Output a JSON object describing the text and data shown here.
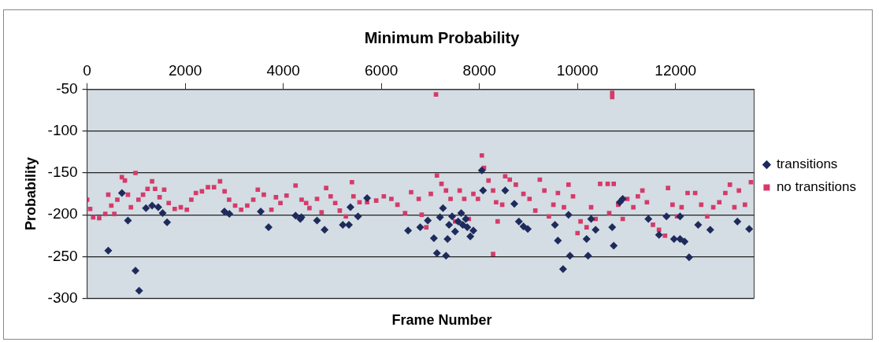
{
  "chart_data": {
    "type": "scatter",
    "title": "Minimum Probability",
    "xlabel": "Frame Number",
    "ylabel": "Probability",
    "xlim": [
      0,
      13600
    ],
    "xticks": [
      0,
      2000,
      4000,
      6000,
      8000,
      10000,
      12000
    ],
    "ylim": [
      -300,
      -50
    ],
    "yticks": [
      -50,
      -100,
      -150,
      -200,
      -250,
      -300
    ],
    "grid": "y",
    "legend": "right",
    "series": [
      {
        "name": "transitions",
        "color": "#1f2a5c",
        "marker": "diamond",
        "x": [
          431,
          710,
          832,
          986,
          1060,
          1200,
          1325,
          1450,
          1540,
          1630,
          2800,
          2900,
          3540,
          3700,
          4250,
          4370,
          4347,
          4688,
          4842,
          5214,
          5338,
          5369,
          5523,
          5709,
          6545,
          6792,
          6947,
          7071,
          7133,
          7318,
          7349,
          7195,
          7257,
          7380,
          7442,
          7504,
          7628,
          7721,
          7752,
          7814,
          7876,
          7659,
          7566,
          8049,
          8074,
          8525,
          8711,
          8804,
          8897,
          8985,
          9539,
          9600,
          9705,
          9846,
          9816,
          10215,
          10185,
          10369,
          10277,
          10707,
          10738,
          10861,
          10922,
          11445,
          11661,
          11814,
          11968,
          12091,
          12183,
          12091,
          12276,
          12460,
          12706,
          13260,
          13500
        ],
        "values": [
          -243,
          -174,
          -207,
          -267,
          -291,
          -192,
          -189,
          -191,
          -198,
          -209,
          -196,
          -199,
          -196,
          -215,
          -201,
          -203,
          -205,
          -207,
          -218,
          -212,
          -212,
          -191,
          -202,
          -180,
          -219,
          -215,
          -207,
          -228,
          -246,
          -249,
          -229,
          -203,
          -192,
          -212,
          -202,
          -220,
          -198,
          -205,
          -215,
          -226,
          -219,
          -212,
          -208,
          -147,
          -171,
          -171,
          -187,
          -208,
          -214,
          -217,
          -212,
          -231,
          -265,
          -249,
          -200,
          -249,
          -229,
          -218,
          -205,
          -215,
          -237,
          -185,
          -181,
          -205,
          -224,
          -202,
          -229,
          -229,
          -232,
          -202,
          -251,
          -212,
          -218,
          -208,
          -217
        ]
      },
      {
        "name": "no transitions",
        "color": "#d63a6a",
        "marker": "square",
        "x": [
          0,
          62,
          123,
          246,
          370,
          431,
          493,
          554,
          616,
          708,
          770,
          832,
          893,
          986,
          1047,
          1140,
          1232,
          1324,
          1386,
          1478,
          1571,
          1663,
          1786,
          1910,
          2033,
          2125,
          2218,
          2341,
          2464,
          2587,
          2710,
          2803,
          2895,
          3018,
          3141,
          3265,
          3388,
          3480,
          3603,
          3758,
          3850,
          3942,
          4066,
          4250,
          4374,
          4466,
          4533,
          4688,
          4781,
          4874,
          4966,
          5059,
          5152,
          5276,
          5400,
          5431,
          5554,
          5709,
          5895,
          6050,
          6204,
          6328,
          6483,
          6607,
          6762,
          6823,
          6916,
          7009,
          7114,
          7133,
          7226,
          7318,
          7411,
          7504,
          7597,
          7690,
          7783,
          7876,
          7969,
          8049,
          8092,
          8185,
          8278,
          8278,
          8340,
          8371,
          8464,
          8525,
          8618,
          8742,
          8897,
          9021,
          9139,
          9231,
          9324,
          9416,
          9508,
          9600,
          9723,
          9816,
          9908,
          10000,
          10062,
          10185,
          10277,
          10369,
          10461,
          10615,
          10646,
          10707,
          10707,
          10738,
          10830,
          10922,
          11015,
          11138,
          11230,
          11323,
          11415,
          11538,
          11661,
          11784,
          11845,
          11937,
          12029,
          12122,
          12245,
          12399,
          12522,
          12645,
          12768,
          12891,
          13014,
          13107,
          13199,
          13291,
          13414,
          13536
        ],
        "values": [
          -182,
          -193,
          -203,
          -204,
          -199,
          -176,
          -189,
          -199,
          -182,
          -155,
          -159,
          -176,
          -191,
          -150,
          -182,
          -176,
          -169,
          -160,
          -169,
          -179,
          -170,
          -186,
          -193,
          -191,
          -194,
          -182,
          -174,
          -172,
          -167,
          -167,
          -160,
          -172,
          -182,
          -189,
          -194,
          -189,
          -182,
          -170,
          -176,
          -194,
          -179,
          -186,
          -177,
          -165,
          -182,
          -186,
          -192,
          -181,
          -197,
          -168,
          -178,
          -186,
          -195,
          -202,
          -161,
          -178,
          -185,
          -185,
          -183,
          -178,
          -181,
          -188,
          -198,
          -173,
          -181,
          -200,
          -215,
          -175,
          -56,
          -153,
          -163,
          -171,
          -181,
          -208,
          -171,
          -181,
          -205,
          -175,
          -181,
          -129,
          -144,
          -159,
          -171,
          -247,
          -185,
          -208,
          -188,
          -154,
          -158,
          -164,
          -175,
          -181,
          -195,
          -158,
          -171,
          -202,
          -188,
          -174,
          -191,
          -164,
          -178,
          -222,
          -208,
          -215,
          -191,
          -205,
          -163,
          -163,
          -198,
          -54,
          -59,
          -163,
          -188,
          -205,
          -181,
          -191,
          -178,
          -171,
          -185,
          -212,
          -218,
          -225,
          -168,
          -188,
          -202,
          -191,
          -174,
          -174,
          -188,
          -202,
          -191,
          -185,
          -174,
          -164,
          -191,
          -171,
          -188,
          -161
        ]
      }
    ]
  }
}
